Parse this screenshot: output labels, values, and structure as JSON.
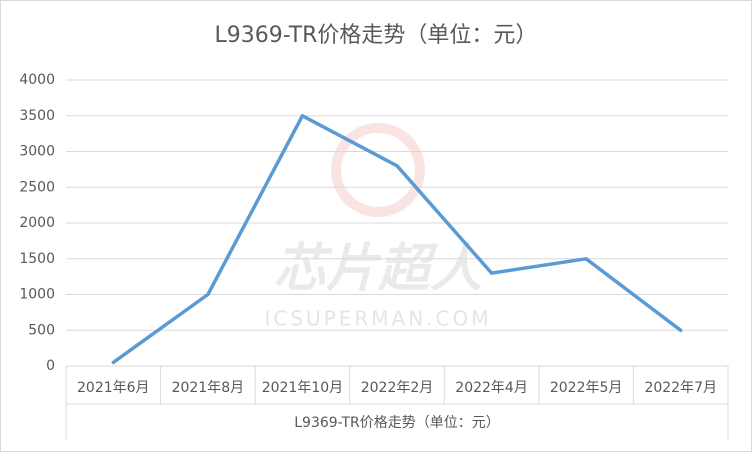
{
  "chart_data": {
    "type": "line",
    "title": "L9369-TR价格走势（单位：元）",
    "categories": [
      "2021年6月",
      "2021年8月",
      "2021年10月",
      "2022年2月",
      "2022年4月",
      "2022年5月",
      "2022年7月"
    ],
    "series": [
      {
        "name": "L9369-TR价格走势（单位：元）",
        "color": "#5b9bd5",
        "values": [
          50,
          1000,
          3500,
          2800,
          1300,
          1500,
          500
        ]
      }
    ],
    "ylim": [
      0,
      4000
    ],
    "yticks": [
      0,
      500,
      1000,
      1500,
      2000,
      2500,
      3000,
      3500,
      4000
    ],
    "grid": true,
    "watermark": [
      "芯片超人",
      "ICSUPERMAN.COM"
    ]
  }
}
